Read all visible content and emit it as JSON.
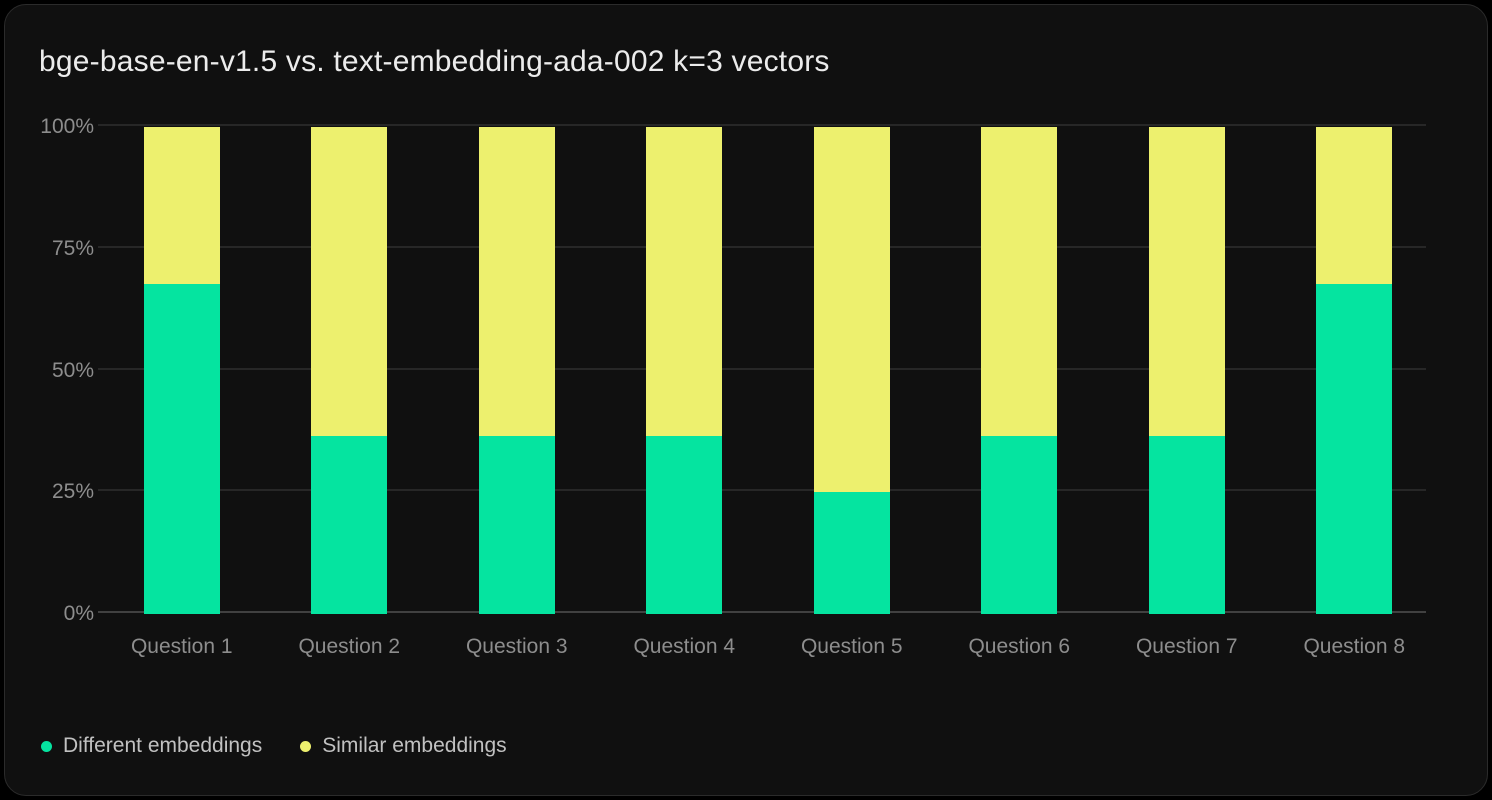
{
  "window": {
    "background": "#000000",
    "card_background": "#101010",
    "card_border": "#2b2b2b"
  },
  "header": {
    "title": "bge-base-en-v1.5 vs. text-embedding-ada-002 k=3 vectors"
  },
  "chart_data": {
    "type": "bar",
    "variant": "stacked-percent-vertical",
    "title": "bge-base-en-v1.5 vs. text-embedding-ada-002 k=3 vectors",
    "categories": [
      "Question 1",
      "Question 2",
      "Question 3",
      "Question 4",
      "Question 5",
      "Question 6",
      "Question 7",
      "Question 8"
    ],
    "series": [
      {
        "name": "Different embeddings",
        "color": "#05e4a0",
        "values": [
          67.8,
          36.5,
          36.5,
          36.5,
          25,
          36.5,
          36.5,
          67.8
        ]
      },
      {
        "name": "Similar embeddings",
        "color": "#edf06e",
        "values": [
          32.2,
          63.5,
          63.5,
          63.5,
          75,
          63.5,
          63.5,
          32.2
        ]
      }
    ],
    "ylim": [
      0,
      100
    ],
    "y_ticks": [
      {
        "value": 0,
        "label": "0%"
      },
      {
        "value": 25,
        "label": "25%"
      },
      {
        "value": 50,
        "label": "50%"
      },
      {
        "value": 75,
        "label": "75%"
      },
      {
        "value": 100,
        "label": "100%"
      }
    ],
    "grid": "horizontal",
    "legend_position": "bottom-left",
    "colors": {
      "grid": "#272727",
      "axis_baseline": "#414141",
      "tick_text": "#8d8d8d",
      "legend_text": "#c1c1c1",
      "title_text": "#ececec"
    }
  },
  "legend": {
    "items": [
      {
        "label": "Different embeddings",
        "color": "#05e4a0"
      },
      {
        "label": "Similar embeddings",
        "color": "#edf06e"
      }
    ]
  }
}
